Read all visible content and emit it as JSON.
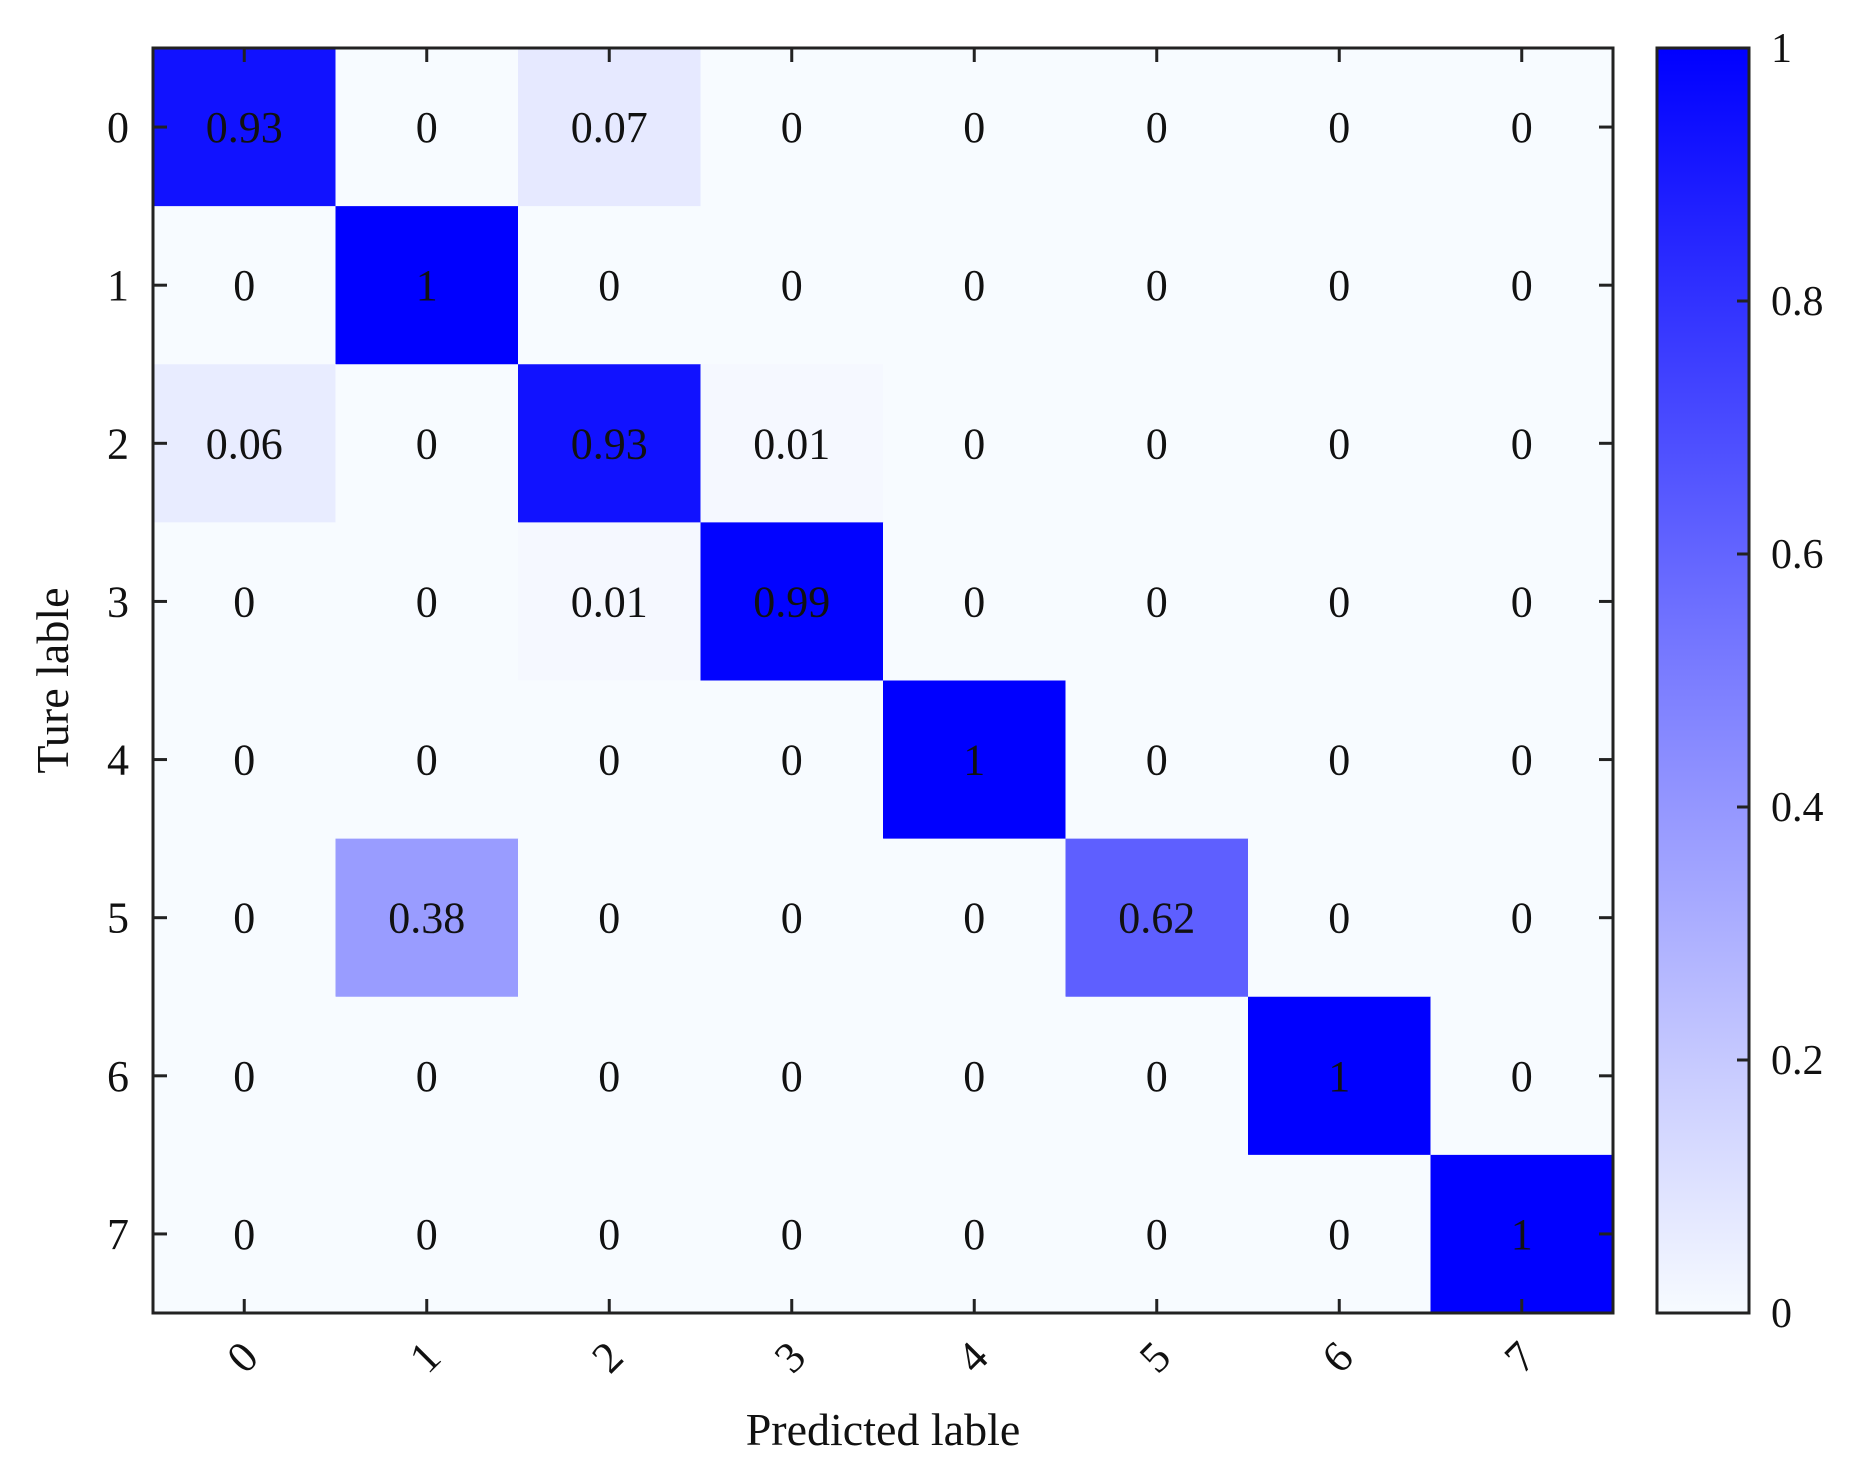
{
  "chart_data": {
    "type": "heatmap",
    "title": "",
    "xlabel": "Predicted lable",
    "ylabel": "Ture lable",
    "x_categories": [
      "0",
      "1",
      "2",
      "3",
      "4",
      "5",
      "6",
      "7"
    ],
    "y_categories": [
      "0",
      "1",
      "2",
      "3",
      "4",
      "5",
      "6",
      "7"
    ],
    "values": [
      [
        0.93,
        0,
        0.07,
        0,
        0,
        0,
        0,
        0
      ],
      [
        0,
        1,
        0,
        0,
        0,
        0,
        0,
        0
      ],
      [
        0.06,
        0,
        0.93,
        0.01,
        0,
        0,
        0,
        0
      ],
      [
        0,
        0,
        0.01,
        0.99,
        0,
        0,
        0,
        0
      ],
      [
        0,
        0,
        0,
        0,
        1,
        0,
        0,
        0
      ],
      [
        0,
        0.38,
        0,
        0,
        0,
        0.62,
        0,
        0
      ],
      [
        0,
        0,
        0,
        0,
        0,
        0,
        1,
        0
      ],
      [
        0,
        0,
        0,
        0,
        0,
        0,
        0,
        1
      ]
    ],
    "value_labels": [
      [
        "0.93",
        "0",
        "0.07",
        "0",
        "0",
        "0",
        "0",
        "0"
      ],
      [
        "0",
        "1",
        "0",
        "0",
        "0",
        "0",
        "0",
        "0"
      ],
      [
        "0.06",
        "0",
        "0.93",
        "0.01",
        "0",
        "0",
        "0",
        "0"
      ],
      [
        "0",
        "0",
        "0.01",
        "0.99",
        "0",
        "0",
        "0",
        "0"
      ],
      [
        "0",
        "0",
        "0",
        "0",
        "1",
        "0",
        "0",
        "0"
      ],
      [
        "0",
        "0.38",
        "0",
        "0",
        "0",
        "0.62",
        "0",
        "0"
      ],
      [
        "0",
        "0",
        "0",
        "0",
        "0",
        "0",
        "1",
        "0"
      ],
      [
        "0",
        "0",
        "0",
        "0",
        "0",
        "0",
        "0",
        "1"
      ]
    ],
    "colorbar": {
      "range": [
        0,
        1
      ],
      "ticks": [
        0,
        0.2,
        0.4,
        0.6,
        0.8,
        1
      ],
      "tick_labels": [
        "0",
        "0.2",
        "0.4",
        "0.6",
        "0.8",
        "1"
      ],
      "color_low": "#f7fbff",
      "color_high": "#0000ff"
    },
    "grid": false,
    "x_tick_rotation": "rotated"
  }
}
